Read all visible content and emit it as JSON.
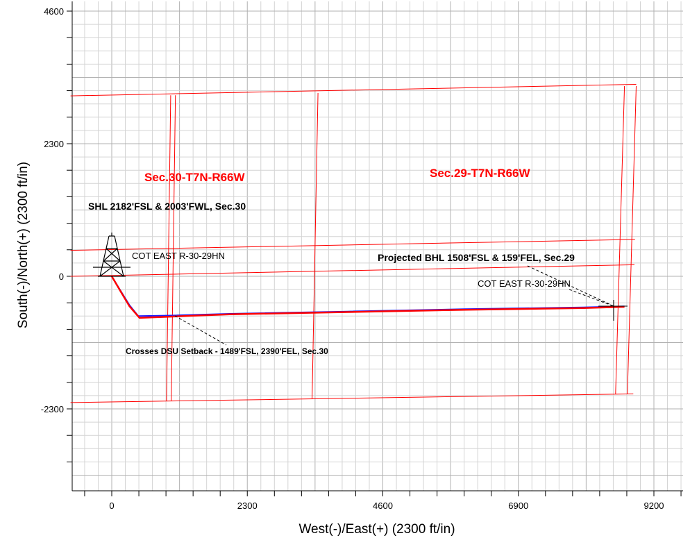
{
  "chart_data": {
    "type": "line",
    "xlabel": "West(-)/East(+) (2300 ft/in)",
    "ylabel": "South(-)/North(+) (2300 ft/in)",
    "xlim": [
      -700,
      9800
    ],
    "ylim": [
      -3500,
      4800
    ],
    "x_ticks": [
      0,
      2300,
      4600,
      6900,
      9200
    ],
    "y_ticks": [
      -2300,
      0,
      2300,
      4600
    ],
    "grid": true,
    "series": [
      {
        "color": "#1a1aff",
        "points": [
          [
            0,
            0
          ],
          [
            150,
            -250
          ],
          [
            300,
            -500
          ],
          [
            450,
            -690
          ],
          [
            1000,
            -680
          ],
          [
            2000,
            -650
          ],
          [
            4000,
            -610
          ],
          [
            6000,
            -570
          ],
          [
            8000,
            -540
          ],
          [
            8700,
            -520
          ]
        ]
      },
      {
        "color": "#ff0000",
        "points": [
          [
            0,
            0
          ],
          [
            150,
            -260
          ],
          [
            300,
            -520
          ],
          [
            470,
            -720
          ],
          [
            1000,
            -700
          ],
          [
            2000,
            -660
          ],
          [
            4000,
            -620
          ],
          [
            6000,
            -580
          ],
          [
            8000,
            -550
          ],
          [
            8700,
            -530
          ]
        ]
      }
    ],
    "section_lines": {
      "color": "#ff0000",
      "polylines": [
        [
          [
            -700,
            3130
          ],
          [
            8900,
            3330
          ]
        ],
        [
          [
            -700,
            450
          ],
          [
            8880,
            640
          ]
        ],
        [
          [
            -700,
            0
          ],
          [
            8870,
            200
          ]
        ],
        [
          [
            -700,
            -2190
          ],
          [
            8850,
            -2040
          ]
        ],
        [
          [
            1000,
            3140
          ],
          [
            930,
            -2160
          ]
        ],
        [
          [
            1080,
            3140
          ],
          [
            1010,
            -2160
          ]
        ],
        [
          [
            3500,
            3180
          ],
          [
            3400,
            -2120
          ]
        ],
        [
          [
            8700,
            3300
          ],
          [
            8550,
            -2040
          ]
        ],
        [
          [
            8900,
            3300
          ],
          [
            8750,
            -2040
          ]
        ]
      ]
    },
    "annotations": {
      "sec30": "Sec.30-T7N-R66W",
      "sec29": "Sec.29-T7N-R66W",
      "shl": "SHL 2182'FSL & 2003'FWL, Sec.30",
      "cot_left": "COT EAST R-30-29HN",
      "bhl": "Projected BHL 1508'FSL & 159'FEL, Sec.29",
      "cot_right": "COT EAST R-30-29HN",
      "crosses": "Crosses DSU Setback - 1489'FSL, 2390'FEL, Sec.30"
    }
  }
}
